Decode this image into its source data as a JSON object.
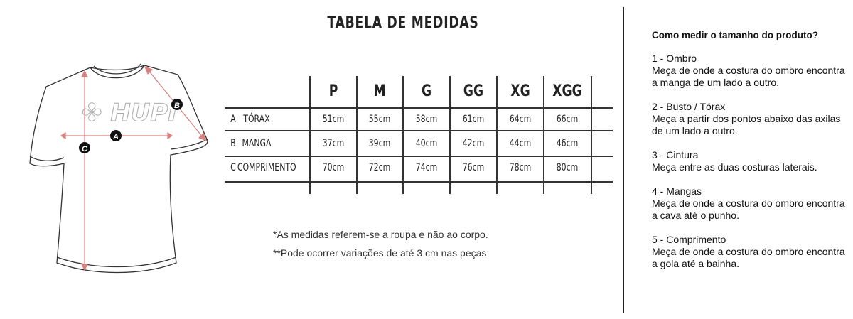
{
  "title": "TABELA DE MEDIDAS",
  "diagram": {
    "logo_text": "HUPI",
    "markers": [
      "A",
      "B",
      "C"
    ],
    "arrow_color": "#d98080"
  },
  "table": {
    "sizes": [
      "P",
      "M",
      "G",
      "GG",
      "XG",
      "XGG"
    ],
    "rows": [
      {
        "code": "A",
        "label": "TÓRAX",
        "values": [
          "51cm",
          "55cm",
          "58cm",
          "61cm",
          "64cm",
          "66cm"
        ]
      },
      {
        "code": "B",
        "label": "MANGA",
        "values": [
          "37cm",
          "39cm",
          "40cm",
          "42cm",
          "44cm",
          "46cm"
        ]
      },
      {
        "code": "C",
        "label": "COMPRIMENTO",
        "values": [
          "70cm",
          "72cm",
          "74cm",
          "76cm",
          "78cm",
          "80cm"
        ]
      }
    ]
  },
  "notes": [
    "*As medidas referem-se a roupa e não ao corpo.",
    "**Pode ocorrer variações de até 3 cm nas peças"
  ],
  "guide": {
    "heading": "Como medir o tamanho do produto?",
    "sections": [
      {
        "title": "1 - Ombro",
        "text": "Meça de onde a costura do ombro encontra a manga de um lado a outro."
      },
      {
        "title": "2 - Busto / Tórax",
        "text": "Meça a partir dos pontos abaixo das axilas de um lado a outro."
      },
      {
        "title": "3 - Cintura",
        "text": "Meça entre as duas costuras laterais."
      },
      {
        "title": "4 - Mangas",
        "text": "Meça de onde a costura do ombro encontra a cava até o punho."
      },
      {
        "title": "5 - Comprimento",
        "text": "Meça de onde a costura do ombro encontra a gola até a bainha."
      }
    ]
  }
}
